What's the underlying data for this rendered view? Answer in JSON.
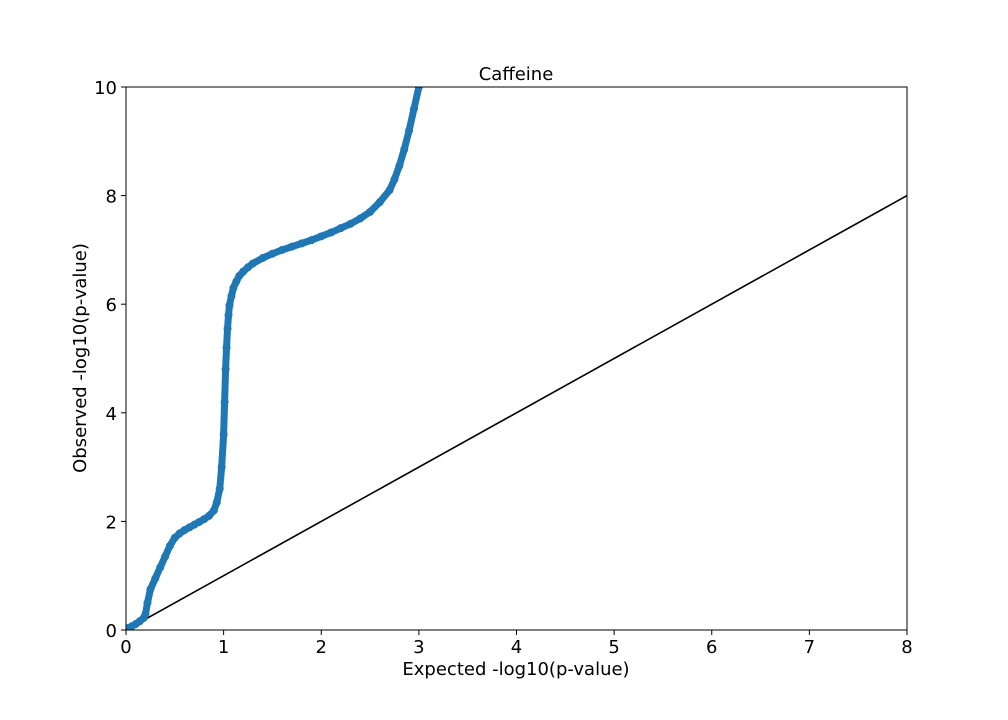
{
  "chart_data": {
    "type": "scatter",
    "title": "Caffeine",
    "xlabel": "Expected -log10(p-value)",
    "ylabel": "Observed -log10(p-value)",
    "xlim": [
      0,
      8
    ],
    "ylim": [
      0,
      10
    ],
    "xticks": [
      "0",
      "1",
      "2",
      "3",
      "4",
      "5",
      "6",
      "7",
      "8"
    ],
    "yticks": [
      "0",
      "2",
      "4",
      "6",
      "8",
      "10"
    ],
    "grid": false,
    "series": [
      {
        "marker_color": "#1f77b4",
        "x": [
          0.0,
          0.03,
          0.06,
          0.1,
          0.14,
          0.18,
          0.2,
          0.22,
          0.25,
          0.3,
          0.35,
          0.4,
          0.45,
          0.5,
          0.55,
          0.6,
          0.65,
          0.7,
          0.75,
          0.8,
          0.85,
          0.9,
          0.93,
          0.96,
          0.98,
          1.0,
          1.01,
          1.02,
          1.03,
          1.04,
          1.05,
          1.06,
          1.08,
          1.1,
          1.13,
          1.16,
          1.2,
          1.25,
          1.3,
          1.4,
          1.5,
          1.6,
          1.7,
          1.8,
          1.9,
          2.0,
          2.1,
          2.2,
          2.3,
          2.4,
          2.5,
          2.6,
          2.7,
          2.75,
          2.8,
          2.85,
          2.9,
          2.95,
          3.0
        ],
        "y": [
          0.0,
          0.04,
          0.07,
          0.11,
          0.16,
          0.22,
          0.3,
          0.5,
          0.75,
          0.95,
          1.15,
          1.35,
          1.55,
          1.7,
          1.78,
          1.84,
          1.89,
          1.94,
          1.99,
          2.04,
          2.1,
          2.2,
          2.35,
          2.6,
          3.0,
          3.6,
          4.2,
          4.8,
          5.2,
          5.55,
          5.8,
          5.98,
          6.15,
          6.3,
          6.42,
          6.52,
          6.6,
          6.68,
          6.75,
          6.85,
          6.93,
          7.0,
          7.06,
          7.12,
          7.18,
          7.25,
          7.32,
          7.4,
          7.48,
          7.58,
          7.7,
          7.88,
          8.1,
          8.3,
          8.55,
          8.85,
          9.2,
          9.6,
          10.0
        ]
      },
      {
        "line_color": "#000000",
        "x": [
          0,
          8
        ],
        "y": [
          0,
          8
        ]
      }
    ]
  }
}
